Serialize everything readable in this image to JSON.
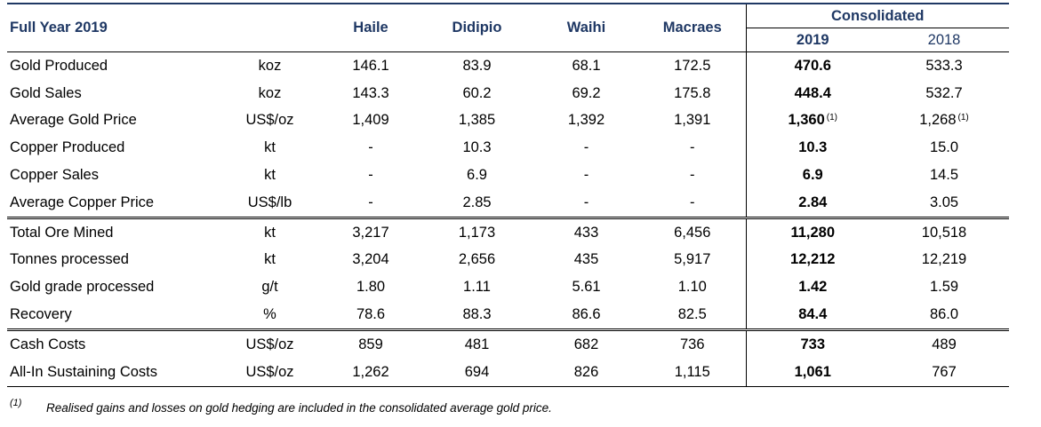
{
  "header": {
    "period_label": "Full Year 2019",
    "columns": [
      "Haile",
      "Didipio",
      "Waihi",
      "Macraes"
    ],
    "consolidated_label": "Consolidated",
    "year_2019": "2019",
    "year_2018": "2018"
  },
  "rows": [
    {
      "label": "Gold Produced",
      "unit": "koz",
      "haile": "146.1",
      "didipio": "83.9",
      "waihi": "68.1",
      "macraes": "172.5",
      "c2019": "470.6",
      "c2018": "533.3"
    },
    {
      "label": "Gold Sales",
      "unit": "koz",
      "haile": "143.3",
      "didipio": "60.2",
      "waihi": "69.2",
      "macraes": "175.8",
      "c2019": "448.4",
      "c2018": "532.7"
    },
    {
      "label": "Average Gold Price",
      "unit": "US$/oz",
      "haile": "1,409",
      "didipio": "1,385",
      "waihi": "1,392",
      "macraes": "1,391",
      "c2019": "1,360",
      "c2019_note": "(1)",
      "c2018": "1,268",
      "c2018_note": "(1)"
    },
    {
      "label": "Copper Produced",
      "unit": "kt",
      "haile": "-",
      "didipio": "10.3",
      "waihi": "-",
      "macraes": "-",
      "c2019": "10.3",
      "c2018": "15.0"
    },
    {
      "label": "Copper Sales",
      "unit": "kt",
      "haile": "-",
      "didipio": "6.9",
      "waihi": "-",
      "macraes": "-",
      "c2019": "6.9",
      "c2018": "14.5"
    },
    {
      "label": "Average Copper Price",
      "unit": "US$/lb",
      "haile": "-",
      "didipio": "2.85",
      "waihi": "-",
      "macraes": "-",
      "c2019": "2.84",
      "c2018": "3.05"
    },
    {
      "label": "Total Ore Mined",
      "unit": "kt",
      "haile": "3,217",
      "didipio": "1,173",
      "waihi": "433",
      "macraes": "6,456",
      "c2019": "11,280",
      "c2018": "10,518"
    },
    {
      "label": "Tonnes processed",
      "unit": "kt",
      "haile": "3,204",
      "didipio": "2,656",
      "waihi": "435",
      "macraes": "5,917",
      "c2019": "12,212",
      "c2018": "12,219"
    },
    {
      "label": "Gold grade processed",
      "unit": "g/t",
      "haile": "1.80",
      "didipio": "1.11",
      "waihi": "5.61",
      "macraes": "1.10",
      "c2019": "1.42",
      "c2018": "1.59"
    },
    {
      "label": "Recovery",
      "unit": "%",
      "haile": "78.6",
      "didipio": "88.3",
      "waihi": "86.6",
      "macraes": "82.5",
      "c2019": "84.4",
      "c2018": "86.0"
    },
    {
      "label": "Cash Costs",
      "unit": "US$/oz",
      "haile": "859",
      "didipio": "481",
      "waihi": "682",
      "macraes": "736",
      "c2019": "733",
      "c2018": "489"
    },
    {
      "label": "All-In Sustaining Costs",
      "unit": "US$/oz",
      "haile": "1,262",
      "didipio": "694",
      "waihi": "826",
      "macraes": "1,115",
      "c2019": "1,061",
      "c2018": "767"
    }
  ],
  "footnote": {
    "mark": "(1)",
    "text": "Realised gains and losses on gold hedging are included in the consolidated average gold price."
  }
}
